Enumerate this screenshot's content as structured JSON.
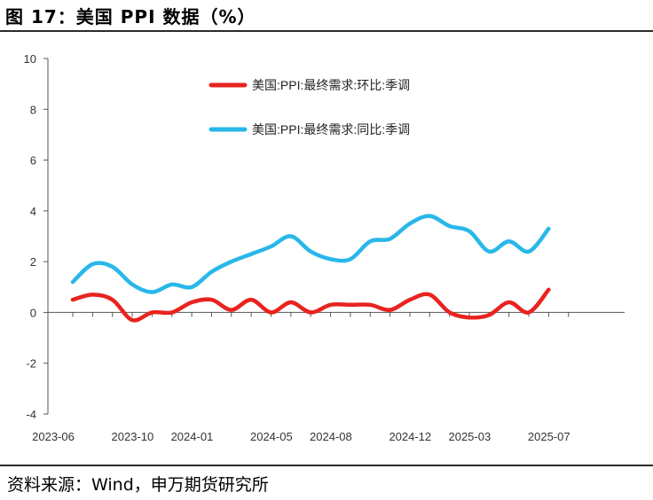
{
  "header": {
    "title": "图 17：美国 PPI 数据（%）"
  },
  "footer": {
    "source": "资料来源：Wind，申万期货研究所"
  },
  "chart_data": {
    "type": "line",
    "title": "图 17：美国 PPI 数据（%）",
    "xlabel": "",
    "ylabel": "",
    "ylim": [
      -4,
      10
    ],
    "yticks": [
      10,
      8,
      6,
      4,
      2,
      0,
      -2,
      -4
    ],
    "x_tick_labels": [
      "2023-06",
      "2023-10",
      "2024-01",
      "2024-05",
      "2024-08",
      "2024-12",
      "2025-03",
      "2025-07"
    ],
    "x_tick_index": [
      0,
      4,
      7,
      11,
      14,
      18,
      21,
      25
    ],
    "x": [
      "2023-06",
      "2023-07",
      "2023-08",
      "2023-09",
      "2023-10",
      "2023-11",
      "2023-12",
      "2024-01",
      "2024-02",
      "2024-03",
      "2024-04",
      "2024-05",
      "2024-06",
      "2024-07",
      "2024-08",
      "2024-09",
      "2024-10",
      "2024-11",
      "2024-12",
      "2025-01",
      "2025-02",
      "2025-03",
      "2025-04",
      "2025-05",
      "2025-06",
      "2025-07"
    ],
    "legend_position": "top-center",
    "grid": false,
    "series": [
      {
        "name": "美国:PPI:最终需求:环比:季调",
        "color": "#e8231f",
        "values": [
          0.5,
          0.7,
          0.5,
          -0.3,
          0.0,
          0.0,
          0.4,
          0.5,
          0.1,
          0.5,
          0.0,
          0.4,
          0.0,
          0.3,
          0.3,
          0.3,
          0.1,
          0.5,
          0.7,
          0.0,
          -0.2,
          -0.1,
          0.4,
          0.0,
          0.9,
          null
        ]
      },
      {
        "name": "美国:PPI:最终需求:同比:季调",
        "color": "#29b7ea",
        "values": [
          1.2,
          1.9,
          1.8,
          1.1,
          0.8,
          1.1,
          1.0,
          1.6,
          2.0,
          2.3,
          2.6,
          3.0,
          2.4,
          2.1,
          2.1,
          2.8,
          2.9,
          3.5,
          3.8,
          3.4,
          3.2,
          2.4,
          2.8,
          2.4,
          3.3,
          null
        ]
      }
    ]
  }
}
